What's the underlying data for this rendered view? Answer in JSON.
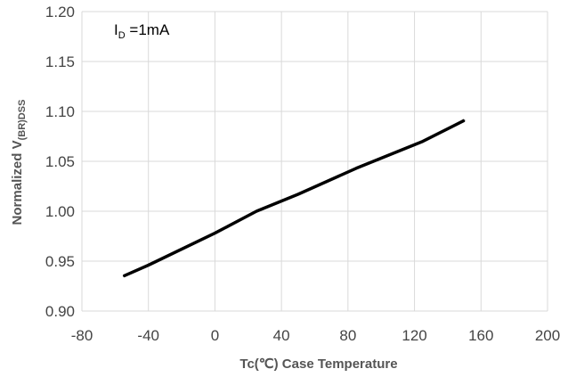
{
  "chart_data": {
    "type": "line",
    "title": "",
    "xlabel": "Tc(℃) Case Temperature",
    "ylabel_main": "Normalized V",
    "ylabel_sub": "(BR)DSS",
    "xlim": [
      -80,
      200
    ],
    "ylim": [
      0.9,
      1.2
    ],
    "x_ticks": [
      -80,
      -40,
      0,
      40,
      80,
      120,
      160,
      200
    ],
    "x_tick_labels": [
      "-80",
      "-40",
      "0",
      "40",
      "80",
      "120",
      "160",
      "200"
    ],
    "y_ticks": [
      0.9,
      0.95,
      1.0,
      1.05,
      1.1,
      1.15,
      1.2
    ],
    "y_tick_labels": [
      "0.90",
      "0.95",
      "1.00",
      "1.05",
      "1.10",
      "1.15",
      "1.20"
    ],
    "grid": true,
    "annotation": {
      "main": "I",
      "sub": "D",
      "rest": " =1mA"
    },
    "series": [
      {
        "color": "#000000",
        "x": [
          -55,
          -40,
          0,
          25,
          50,
          85,
          125,
          150
        ],
        "y": [
          0.935,
          0.946,
          0.978,
          1.0,
          1.017,
          1.043,
          1.07,
          1.091
        ]
      }
    ]
  }
}
